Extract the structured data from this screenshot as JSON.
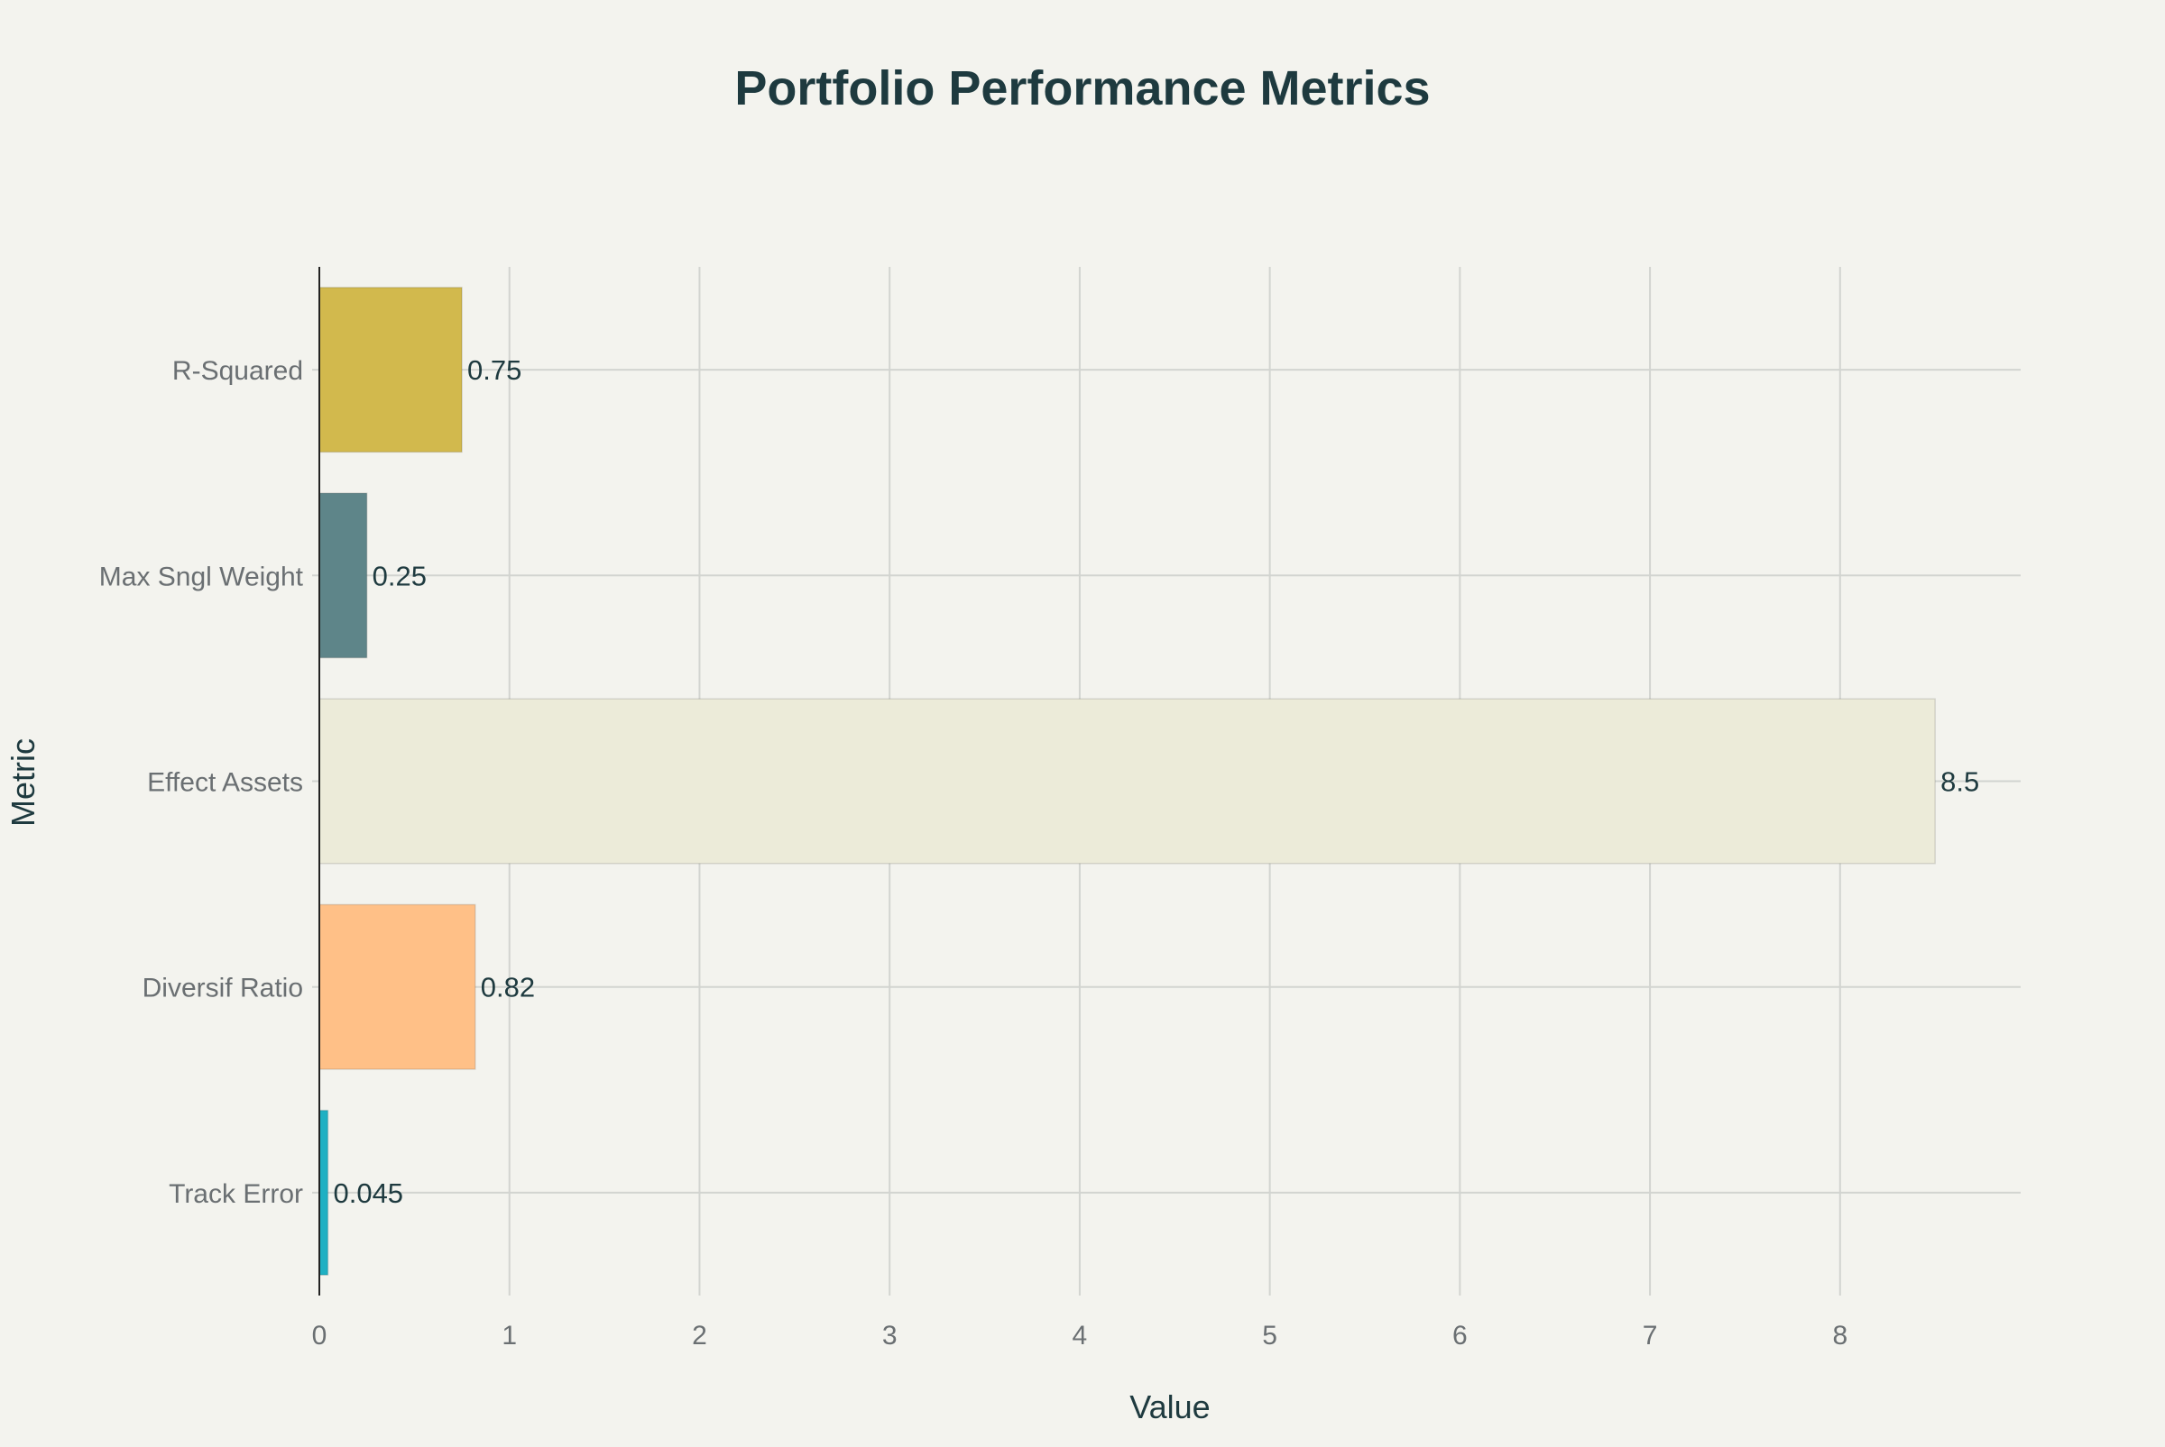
{
  "chart_data": {
    "type": "bar",
    "orientation": "horizontal",
    "title": "Portfolio Performance Metrics",
    "xlabel": "Value",
    "ylabel": "Metric",
    "categories": [
      "R-Squared",
      "Max Sngl Weight",
      "Effect Assets",
      "Diversif Ratio",
      "Track Error"
    ],
    "values": [
      0.75,
      0.25,
      8.5,
      0.82,
      0.045
    ],
    "data_labels": [
      "0.75",
      "0.25",
      "8.5",
      "0.82",
      "0.045"
    ],
    "colors": [
      "#d2b94d",
      "#5e8589",
      "#ecebd9",
      "#ffc087",
      "#1fb0c3"
    ],
    "xlim": [
      0,
      8.95
    ],
    "xticks": [
      0,
      1,
      2,
      3,
      4,
      5,
      6,
      7,
      8
    ],
    "grid": true,
    "legend": "none"
  },
  "style": {
    "background": "#f3f3ee",
    "text_color": "#1e3a3f",
    "tick_color": "#6a6f72",
    "grid_color": "#d2d4d0"
  }
}
